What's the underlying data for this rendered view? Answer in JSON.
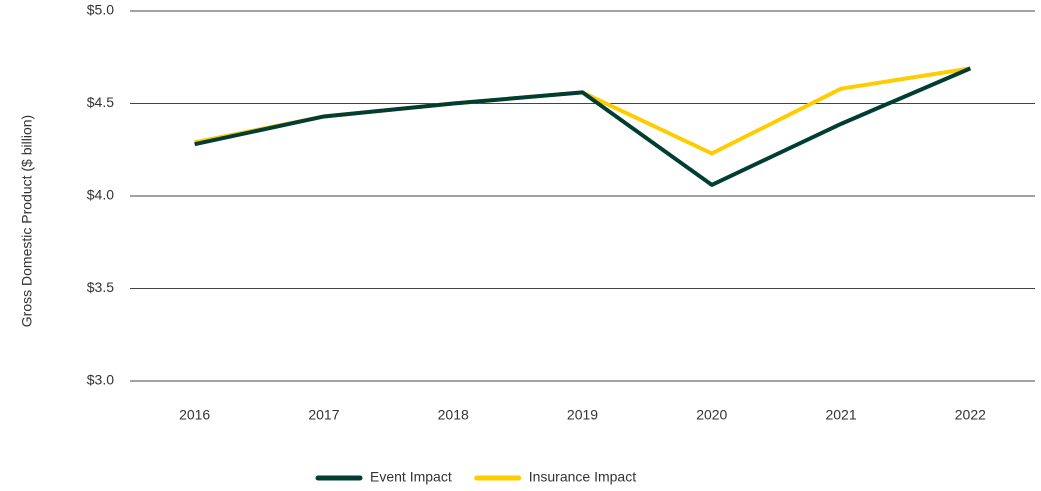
{
  "chart_data": {
    "type": "line",
    "y_label": "Gross Domestic Product ($ billion)",
    "categories": [
      "2016",
      "2017",
      "2018",
      "2019",
      "2020",
      "2021",
      "2022"
    ],
    "series": [
      {
        "name": "Event Impact",
        "color": "#003d33",
        "values": [
          4.28,
          4.43,
          4.5,
          4.56,
          4.06,
          4.39,
          4.69
        ]
      },
      {
        "name": "Insurance Impact",
        "color": "#ffcc00",
        "values": [
          4.29,
          4.43,
          4.5,
          4.56,
          4.23,
          4.58,
          4.69
        ]
      }
    ],
    "ylim": [
      3.0,
      5.0
    ],
    "yticks": [
      {
        "value": 3.0,
        "label": "$3.0"
      },
      {
        "value": 3.5,
        "label": "$3.5"
      },
      {
        "value": 4.0,
        "label": "$4.0"
      },
      {
        "value": 4.5,
        "label": "$4.5"
      },
      {
        "value": 5.0,
        "label": "$5.0"
      }
    ],
    "grid": true,
    "legend": "bottom"
  }
}
